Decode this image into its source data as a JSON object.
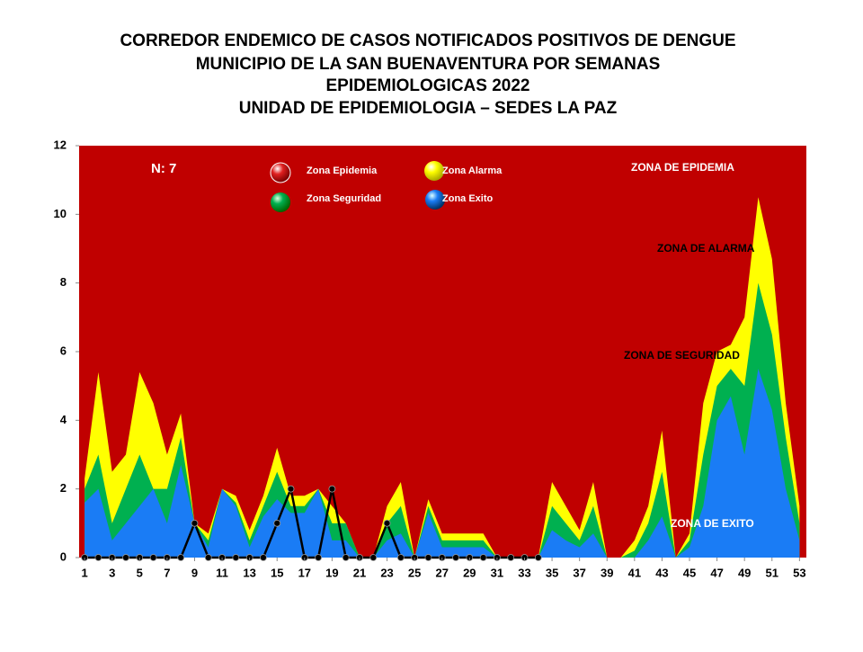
{
  "chart_data": {
    "type": "endemic-corridor",
    "title": [
      "CORREDOR ENDEMICO DE CASOS NOTIFICADOS POSITIVOS DE DENGUE",
      "MUNICIPIO DE LA SAN BUENAVENTURA  POR SEMANAS",
      "EPIDEMIOLOGICAS 2022",
      "UNIDAD DE EPIDEMIOLOGIA – SEDES LA PAZ"
    ],
    "annotations": {
      "n": "N: 7",
      "epidemia": "ZONA DE EPIDEMIA",
      "alarma": "ZONA DE ALARMA",
      "seguridad": "ZONA DE  SEGURIDAD",
      "exito": "ZONA DE  EXITO"
    },
    "background_zone": {
      "name": "Zona Epidemia",
      "color": "#c00000"
    },
    "x": [
      1,
      2,
      3,
      4,
      5,
      6,
      7,
      8,
      9,
      10,
      11,
      12,
      13,
      14,
      15,
      16,
      17,
      18,
      19,
      20,
      21,
      22,
      23,
      24,
      25,
      26,
      27,
      28,
      29,
      30,
      31,
      32,
      33,
      34,
      35,
      36,
      37,
      38,
      39,
      40,
      41,
      42,
      43,
      44,
      45,
      46,
      47,
      48,
      49,
      50,
      51,
      52,
      53
    ],
    "xlim": [
      0.6,
      53.5
    ],
    "xticks": [
      1,
      3,
      5,
      7,
      9,
      11,
      13,
      15,
      17,
      19,
      21,
      23,
      25,
      27,
      29,
      31,
      33,
      35,
      37,
      39,
      41,
      43,
      45,
      47,
      49,
      51,
      53
    ],
    "ylim": [
      0,
      12
    ],
    "yticks": [
      0,
      2,
      4,
      6,
      8,
      10,
      12
    ],
    "series": [
      {
        "name": "Zona Alarma",
        "color": "#ffff00",
        "kind": "area",
        "values": [
          2.3,
          5.4,
          2.5,
          3.0,
          5.4,
          4.5,
          3.0,
          4.2,
          1.0,
          0.7,
          2.0,
          1.8,
          0.8,
          1.8,
          3.2,
          1.8,
          1.8,
          2.0,
          1.5,
          1.0,
          0,
          0,
          1.5,
          2.2,
          0,
          1.7,
          0.7,
          0.7,
          0.7,
          0.7,
          0,
          0,
          0,
          0,
          2.2,
          1.5,
          0.8,
          2.2,
          0,
          0,
          0.5,
          1.5,
          3.7,
          0,
          0.7,
          4.5,
          6.0,
          6.2,
          7.0,
          10.5,
          8.7,
          4.5,
          1.5
        ]
      },
      {
        "name": "Zona Seguridad",
        "color": "#00b050",
        "kind": "area",
        "values": [
          2.0,
          3.0,
          1.0,
          2.0,
          3.0,
          2.0,
          2.0,
          3.5,
          1.0,
          0.5,
          2.0,
          1.6,
          0.5,
          1.5,
          2.5,
          1.5,
          1.5,
          2.0,
          1.0,
          1.0,
          0,
          0,
          1.0,
          1.5,
          0,
          1.5,
          0.5,
          0.5,
          0.5,
          0.5,
          0,
          0,
          0,
          0,
          1.5,
          1.0,
          0.5,
          1.5,
          0,
          0,
          0.2,
          1.0,
          2.5,
          0,
          0.5,
          3.0,
          5.0,
          5.5,
          5.0,
          8.0,
          6.5,
          3.5,
          1.0
        ]
      },
      {
        "name": "Zona Exito",
        "color": "#1a7cf5",
        "kind": "area",
        "values": [
          1.6,
          2.0,
          0.5,
          1.0,
          1.5,
          2.0,
          1.0,
          2.7,
          1.0,
          0.3,
          2.0,
          1.5,
          0.3,
          1.2,
          1.7,
          1.3,
          1.3,
          2.0,
          0.5,
          0.5,
          0,
          0,
          0.5,
          0.7,
          0,
          1.3,
          0.3,
          0.3,
          0.3,
          0.3,
          0,
          0,
          0,
          0,
          0.8,
          0.5,
          0.3,
          0.7,
          0,
          0,
          0,
          0.5,
          1.2,
          0,
          0.3,
          1.5,
          4.0,
          4.7,
          3.0,
          5.5,
          4.3,
          2.0,
          0.5
        ]
      },
      {
        "color": "#000000",
        "kind": "line",
        "values": [
          0,
          0,
          0,
          0,
          0,
          0,
          0,
          0,
          1,
          0,
          0,
          0,
          0,
          0,
          1,
          2,
          0,
          0,
          2,
          0,
          0,
          0,
          1,
          0,
          0,
          0,
          0,
          0,
          0,
          0,
          0,
          0,
          0,
          0,
          null,
          null,
          null,
          null,
          null,
          null,
          null,
          null,
          null,
          null,
          null,
          null,
          null,
          null,
          null,
          null,
          null,
          null,
          null
        ]
      }
    ]
  }
}
